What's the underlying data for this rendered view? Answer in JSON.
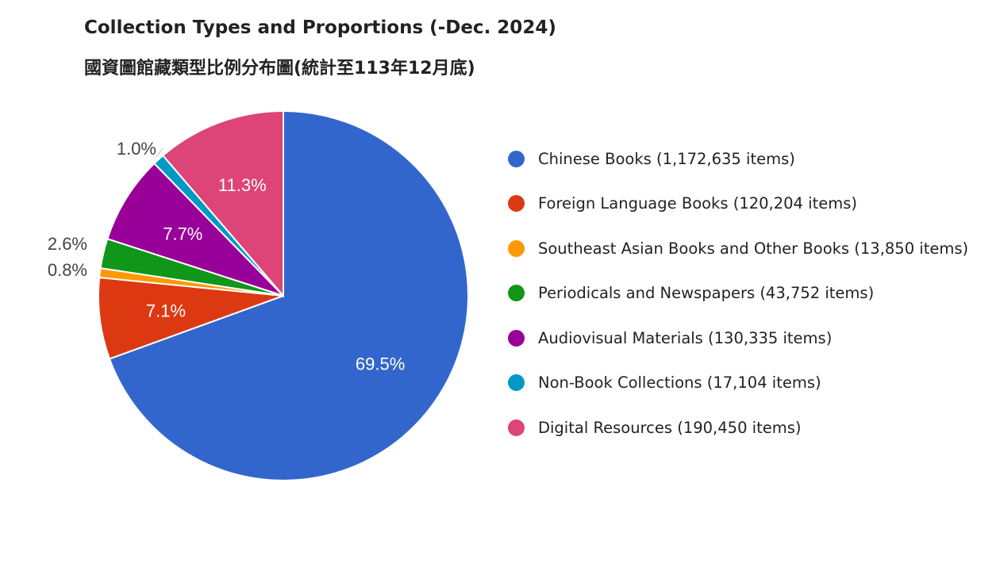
{
  "header": {
    "title": "Collection Types and Proportions (-Dec. 2024)",
    "subtitle": "國資圖館藏類型比例分布圖(統計至113年12月底)"
  },
  "chart_data": {
    "type": "pie",
    "title": "Collection Types and Proportions (-Dec. 2024)",
    "subtitle": "國資圖館藏類型比例分布圖(統計至113年12月底)",
    "legend_position": "right",
    "slices": [
      {
        "label": "Chinese Books (1,172,635 items)",
        "value": 1172635,
        "percent_label": "69.5%",
        "color": "#3366cc",
        "label_position": "inside"
      },
      {
        "label": "Foreign Language Books (120,204 items)",
        "value": 120204,
        "percent_label": "7.1%",
        "color": "#dc3912",
        "label_position": "inside"
      },
      {
        "label": "Southeast Asian Books and Other Books (13,850 items)",
        "value": 13850,
        "percent_label": "0.8%",
        "color": "#ff9900",
        "label_position": "outside"
      },
      {
        "label": "Periodicals and Newspapers (43,752 items)",
        "value": 43752,
        "percent_label": "2.6%",
        "color": "#109618",
        "label_position": "outside"
      },
      {
        "label": "Audiovisual Materials (130,335 items)",
        "value": 130335,
        "percent_label": "7.7%",
        "color": "#990099",
        "label_position": "inside"
      },
      {
        "label": "Non-Book Collections (17,104 items)",
        "value": 17104,
        "percent_label": "1.0%",
        "color": "#0099c6",
        "label_position": "outside"
      },
      {
        "label": "Digital Resources (190,450 items)",
        "value": 190450,
        "percent_label": "11.3%",
        "color": "#dd4477",
        "label_position": "inside"
      }
    ]
  }
}
